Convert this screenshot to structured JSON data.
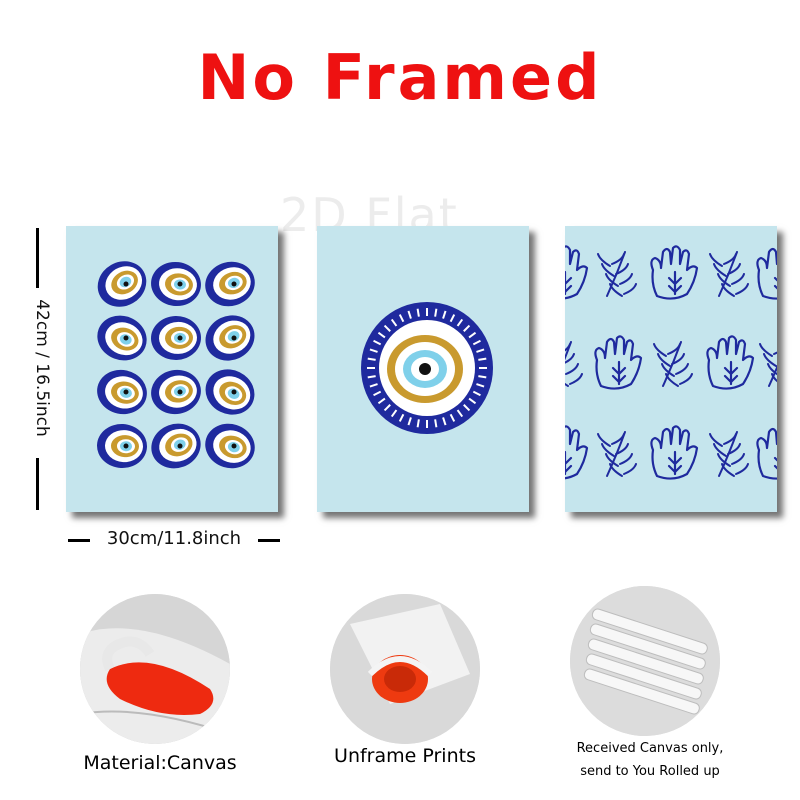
{
  "title": "No Framed",
  "watermark": "2D Flat",
  "dimensions": {
    "height_label": "42cm / 16.5inch",
    "width_label": "30cm/11.8inch"
  },
  "colors": {
    "panel_bg": "#c5e5ed",
    "navy": "#1f2a9e",
    "gold": "#c99a2e",
    "light_blue": "#7fd0ea",
    "title_red": "#ee1111"
  },
  "panels": [
    {
      "motif": "evil-eye-grid"
    },
    {
      "motif": "single-evil-eye"
    },
    {
      "motif": "hamsa-and-leaf-pattern"
    }
  ],
  "features": [
    {
      "caption": "Material:Canvas"
    },
    {
      "caption": "Unframe  Prints"
    },
    {
      "caption_line1": "Received Canvas only,",
      "caption_line2": "send to You Rolled up"
    }
  ]
}
